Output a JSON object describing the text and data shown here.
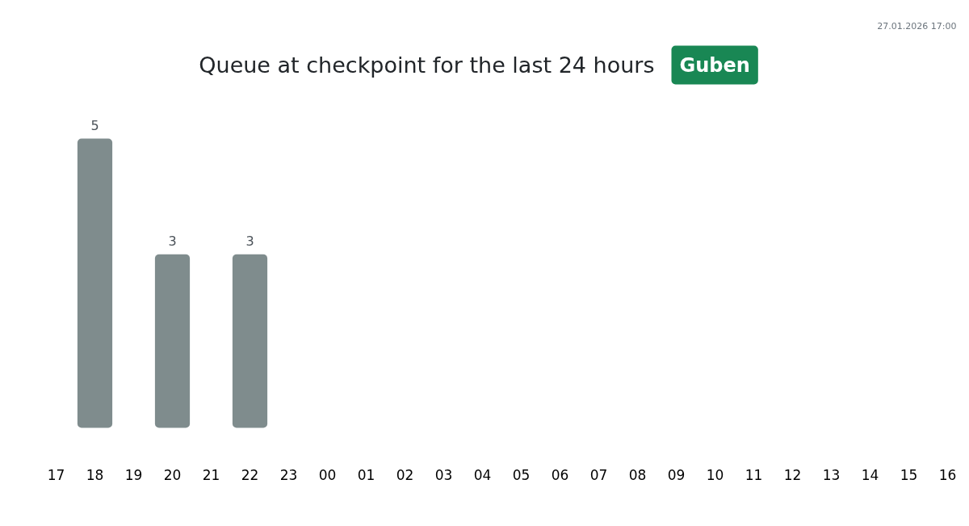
{
  "chart_data": {
    "type": "bar",
    "title": "Queue at checkpoint for the last 24 hours",
    "subtitle": "Guben",
    "annotations": [
      "27.01.2026 17:00"
    ],
    "categories": [
      "17",
      "18",
      "19",
      "20",
      "21",
      "22",
      "23",
      "00",
      "01",
      "02",
      "03",
      "04",
      "05",
      "06",
      "07",
      "08",
      "09",
      "10",
      "11",
      "12",
      "13",
      "14",
      "15",
      "16"
    ],
    "values": [
      0,
      5,
      0,
      3,
      0,
      3,
      0,
      0,
      0,
      0,
      0,
      0,
      0,
      0,
      0,
      0,
      0,
      0,
      0,
      0,
      0,
      0,
      0,
      0
    ],
    "value_labels": [
      null,
      "5",
      null,
      "3",
      null,
      "3",
      null,
      null,
      null,
      null,
      null,
      null,
      null,
      null,
      null,
      null,
      null,
      null,
      null,
      null,
      null,
      null,
      null,
      null
    ],
    "color": "#7f8c8d"
  }
}
